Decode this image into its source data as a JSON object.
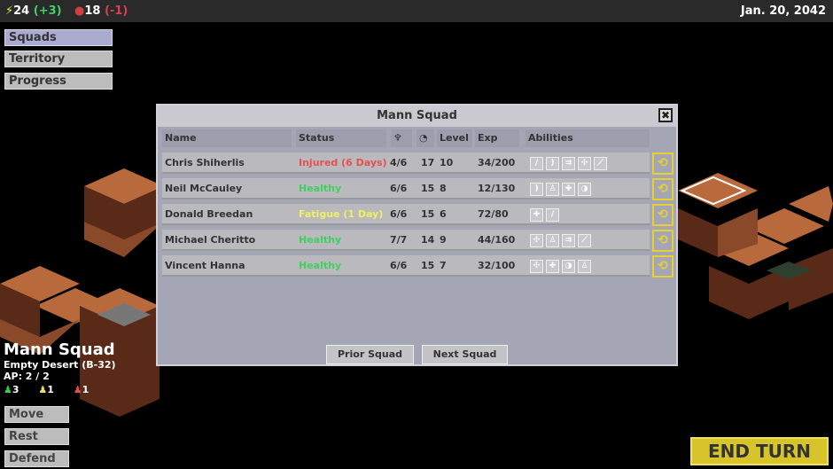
{
  "topbar": {
    "energy": "24",
    "energy_delta": "(+3)",
    "food": "18",
    "food_delta": "(-1)",
    "date": "Jan. 20, 2042"
  },
  "nav": [
    {
      "label": "Squads",
      "active": true
    },
    {
      "label": "Territory"
    },
    {
      "label": "Progress"
    }
  ],
  "dialog": {
    "title": "Mann Squad",
    "close": "✖",
    "columns": {
      "name": "Name",
      "status": "Status",
      "health_icon": "♆",
      "mind_icon": "◔",
      "level": "Level",
      "exp": "Exp",
      "abilities": "Abilities"
    },
    "rows": [
      {
        "name": "Chris Shiherlis",
        "status": "Injured (6 Days)",
        "status_color": "#e85050",
        "hp": "4/6",
        "stat": "17",
        "level": "10",
        "exp": "34/200",
        "abilities": [
          "slash",
          "arc",
          "move",
          "shield",
          "blade"
        ]
      },
      {
        "name": "Neil McCauley",
        "status": "Healthy",
        "status_color": "#40d060",
        "hp": "6/6",
        "stat": "15",
        "level": "8",
        "exp": "12/130",
        "abilities": [
          "arc",
          "flask",
          "heal",
          "half"
        ]
      },
      {
        "name": "Donald Breedan",
        "status": "Fatigue (1 Day)",
        "status_color": "#f0f060",
        "hp": "6/6",
        "stat": "15",
        "level": "6",
        "exp": "72/80",
        "abilities": [
          "heal",
          "slash"
        ]
      },
      {
        "name": "Michael Cheritto",
        "status": "Healthy",
        "status_color": "#40d060",
        "hp": "7/7",
        "stat": "14",
        "level": "9",
        "exp": "44/160",
        "abilities": [
          "shield",
          "flask",
          "move",
          "blade"
        ]
      },
      {
        "name": "Vincent Hanna",
        "status": "Healthy",
        "status_color": "#40d060",
        "hp": "6/6",
        "stat": "15",
        "level": "7",
        "exp": "32/100",
        "abilities": [
          "shield",
          "heal",
          "half",
          "flask"
        ]
      }
    ],
    "prior": "Prior Squad",
    "next": "Next Squad"
  },
  "squad": {
    "name": "Mann Squad",
    "location": "Empty Desert (B-32)",
    "ap": "AP: 2 / 2",
    "green": "3",
    "yellow": "1",
    "red": "1"
  },
  "actions": [
    "Move",
    "Rest",
    "Defend"
  ],
  "end_turn": "END TURN"
}
